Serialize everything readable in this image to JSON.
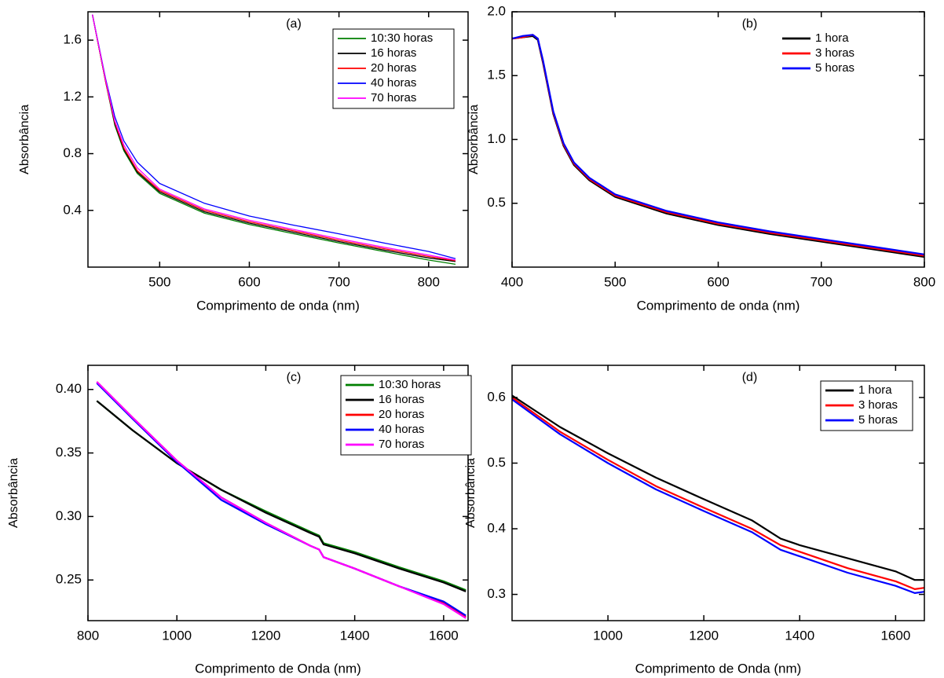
{
  "chart_data": [
    {
      "type": "line",
      "annotation": "(a)",
      "x_label": "Comprimento de onda (nm)",
      "y_label": "Absorbância",
      "x": [
        425,
        440,
        450,
        460,
        475,
        500,
        550,
        600,
        650,
        700,
        750,
        800,
        830
      ],
      "xlim": [
        420,
        844
      ],
      "xticks": [
        500,
        600,
        700,
        800
      ],
      "ylim": [
        0,
        1.8
      ],
      "yticks": [
        0.4,
        0.8,
        1.2,
        1.6
      ],
      "legend": "upper right",
      "legend_frame": true,
      "line_width": 1.3,
      "series": [
        {
          "name": "10:30 horas",
          "color": "#007f00",
          "values": [
            1.78,
            1.3,
            1.0,
            0.82,
            0.66,
            0.52,
            0.38,
            0.3,
            0.235,
            0.17,
            0.11,
            0.05,
            0.02
          ]
        },
        {
          "name": "16 horas",
          "color": "#000000",
          "values": [
            1.78,
            1.3,
            1.01,
            0.83,
            0.67,
            0.53,
            0.39,
            0.31,
            0.245,
            0.18,
            0.12,
            0.065,
            0.04
          ]
        },
        {
          "name": "20 horas",
          "color": "#ff0000",
          "values": [
            1.78,
            1.3,
            1.02,
            0.84,
            0.68,
            0.54,
            0.4,
            0.32,
            0.255,
            0.19,
            0.13,
            0.075,
            0.045
          ]
        },
        {
          "name": "40 horas",
          "color": "#0000ff",
          "values": [
            1.78,
            1.32,
            1.06,
            0.89,
            0.74,
            0.59,
            0.45,
            0.36,
            0.295,
            0.235,
            0.17,
            0.11,
            0.06
          ]
        },
        {
          "name": "70 horas",
          "color": "#ff00ff",
          "values": [
            1.78,
            1.31,
            1.03,
            0.86,
            0.7,
            0.55,
            0.41,
            0.33,
            0.265,
            0.2,
            0.14,
            0.085,
            0.05
          ]
        }
      ]
    },
    {
      "type": "line",
      "annotation": "(b)",
      "x_label": "Comprimento de onda (nm)",
      "y_label": "Absorbância",
      "x": [
        400,
        410,
        420,
        425,
        430,
        440,
        450,
        460,
        475,
        500,
        550,
        600,
        650,
        700,
        750,
        800
      ],
      "xlim": [
        400,
        800
      ],
      "xticks": [
        400,
        500,
        600,
        700,
        800
      ],
      "ylim": [
        0,
        2
      ],
      "yticks": [
        0.5,
        {
          "value": 1,
          "label": "1.0"
        },
        1.5,
        {
          "value": 2,
          "label": "2.0"
        }
      ],
      "legend": "upper right",
      "legend_frame": false,
      "line_width": 2.2,
      "series": [
        {
          "name": "1 hora",
          "color": "#000000",
          "values": [
            1.79,
            1.8,
            1.81,
            1.78,
            1.6,
            1.2,
            0.95,
            0.8,
            0.68,
            0.55,
            0.42,
            0.33,
            0.26,
            0.2,
            0.14,
            0.08
          ]
        },
        {
          "name": "3 horas",
          "color": "#ff0000",
          "values": [
            1.79,
            1.8,
            1.82,
            1.79,
            1.61,
            1.21,
            0.96,
            0.81,
            0.69,
            0.56,
            0.43,
            0.34,
            0.27,
            0.21,
            0.15,
            0.09
          ]
        },
        {
          "name": "5 horas",
          "color": "#0000ff",
          "values": [
            1.79,
            1.81,
            1.82,
            1.79,
            1.62,
            1.22,
            0.97,
            0.82,
            0.7,
            0.57,
            0.44,
            0.35,
            0.28,
            0.22,
            0.16,
            0.1
          ]
        }
      ]
    },
    {
      "type": "line",
      "annotation": "(c)",
      "x_label": "Comprimento de Onda (nm)",
      "y_label": "Absorbância",
      "x": [
        820,
        900,
        1000,
        1100,
        1200,
        1300,
        1320,
        1330,
        1400,
        1500,
        1600,
        1650
      ],
      "xlim": [
        800,
        1655
      ],
      "xticks": [
        800,
        1000,
        1200,
        1400,
        1600
      ],
      "ylim": [
        0.218,
        0.419
      ],
      "yticks": [
        0.25,
        {
          "value": 0.3,
          "label": "0.30"
        },
        0.35,
        {
          "value": 0.4,
          "label": "0.40"
        }
      ],
      "legend": "upper right",
      "legend_frame": true,
      "line_width": 2.2,
      "series": [
        {
          "name": "10:30 horas",
          "color": "#007f00",
          "values": [
            0.391,
            0.368,
            0.342,
            0.321,
            0.304,
            0.288,
            0.285,
            0.279,
            0.272,
            0.26,
            0.249,
            0.242
          ]
        },
        {
          "name": "16 horas",
          "color": "#000000",
          "values": [
            0.391,
            0.368,
            0.342,
            0.321,
            0.303,
            0.287,
            0.284,
            0.278,
            0.271,
            0.259,
            0.248,
            0.241
          ]
        },
        {
          "name": "20 horas",
          "color": "#ff0000",
          "values": [
            0.406,
            0.378,
            0.344,
            0.315,
            0.295,
            0.277,
            0.274,
            0.268,
            0.259,
            0.245,
            0.232,
            0.221
          ]
        },
        {
          "name": "40 horas",
          "color": "#0000ff",
          "values": [
            0.405,
            0.377,
            0.343,
            0.313,
            0.294,
            0.277,
            0.274,
            0.268,
            0.259,
            0.245,
            0.233,
            0.222
          ]
        },
        {
          "name": "70 horas",
          "color": "#ff00ff",
          "values": [
            0.406,
            0.378,
            0.344,
            0.315,
            0.295,
            0.277,
            0.274,
            0.268,
            0.259,
            0.245,
            0.231,
            0.22
          ]
        }
      ]
    },
    {
      "type": "line",
      "annotation": "(d)",
      "x_label": "Comprimento de Onda (nm)",
      "y_label": "Absorbância",
      "x": [
        800,
        900,
        1000,
        1100,
        1200,
        1300,
        1360,
        1400,
        1500,
        1600,
        1640,
        1660
      ],
      "xlim": [
        800,
        1660
      ],
      "xticks": [
        1000,
        1200,
        1400,
        1600
      ],
      "ylim": [
        0.26,
        0.649
      ],
      "yticks": [
        0.3,
        0.4,
        0.5,
        0.6
      ],
      "legend": "upper right",
      "legend_frame": true,
      "line_width": 2.2,
      "series": [
        {
          "name": "1 hora",
          "color": "#000000",
          "values": [
            0.603,
            0.555,
            0.515,
            0.478,
            0.445,
            0.413,
            0.385,
            0.375,
            0.355,
            0.335,
            0.322,
            0.322
          ]
        },
        {
          "name": "3 horas",
          "color": "#ff0000",
          "values": [
            0.6,
            0.548,
            0.505,
            0.465,
            0.432,
            0.4,
            0.375,
            0.365,
            0.34,
            0.32,
            0.308,
            0.31
          ]
        },
        {
          "name": "5 horas",
          "color": "#0000ff",
          "values": [
            0.597,
            0.544,
            0.5,
            0.46,
            0.427,
            0.395,
            0.368,
            0.358,
            0.333,
            0.313,
            0.302,
            0.304
          ]
        }
      ]
    }
  ]
}
